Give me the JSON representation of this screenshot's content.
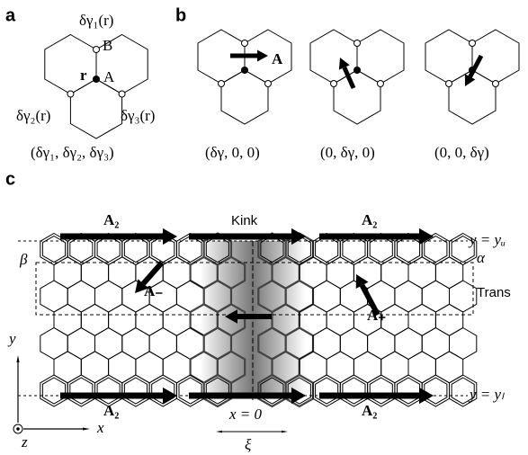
{
  "panels": {
    "a": {
      "label": "a",
      "gamma1": "δγ₁(r)",
      "site_b": "B",
      "r": "r",
      "site_a": "A",
      "gamma2": "δγ₂(r)",
      "gamma3": "δγ₃(r)",
      "caption": "(δγ₁, δγ₂, δγ₃)"
    },
    "b": {
      "label": "b",
      "vector": "A",
      "captions": [
        "(δγ, 0, 0)",
        "(0, δγ, 0)",
        "(0, 0, δγ)"
      ]
    },
    "c": {
      "label": "c",
      "a2_top_left": "A₂",
      "kink": "Kink",
      "a2_top_right": "A₂",
      "y_upper": "y = yᵤ",
      "beta": "β",
      "alpha": "α",
      "trans": "Trans",
      "a_minus": "A₋",
      "a_plus": "A₊",
      "a2_bottom_left": "A₂",
      "a2_bottom_right": "A₂",
      "y_lower": "y = yₗ",
      "x_zero": "x = 0",
      "xi": "ξ",
      "axis_y": "y",
      "axis_x": "x",
      "axis_z": "z"
    }
  }
}
